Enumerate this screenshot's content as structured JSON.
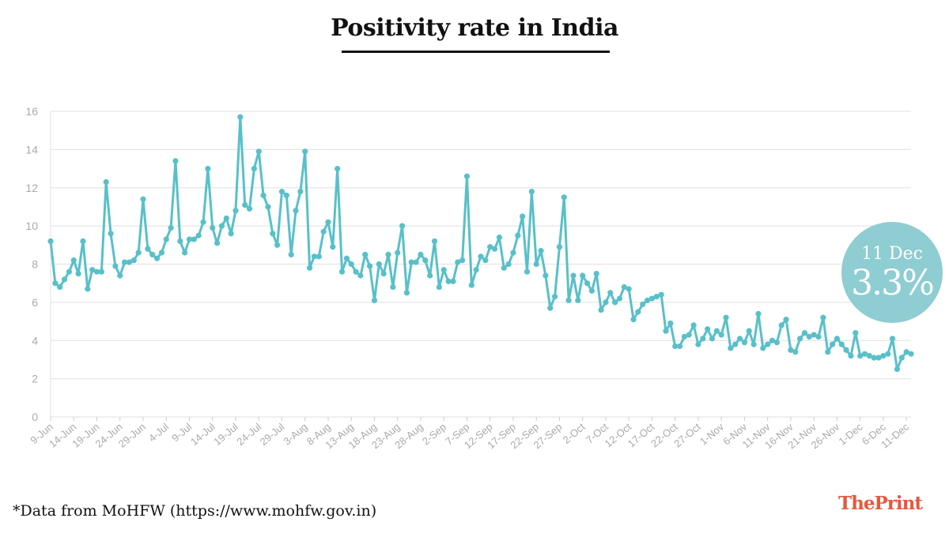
{
  "header": {
    "title": "Positivity rate in India"
  },
  "callout": {
    "date": "11 Dec",
    "value": "3.3%"
  },
  "footer": {
    "source": "*Data from MoHFW (https://www.mohfw.gov.in)",
    "logo": "ThePrint"
  },
  "colors": {
    "line": "#58c0c9",
    "callout": "#8ecdd2",
    "grid": "#e6e6e6",
    "logo": "#e25a3f"
  },
  "chart_data": {
    "type": "line",
    "title": "Positivity rate in India",
    "xlabel": "",
    "ylabel": "",
    "ylim": [
      0,
      16
    ],
    "yticks": [
      0,
      2,
      4,
      6,
      8,
      10,
      12,
      14,
      16
    ],
    "grid": true,
    "start_date": "9-Jun",
    "end_date": "11-Dec",
    "tick_step_days": 5,
    "tick_labels": [
      "9-Jun",
      "14-Jun",
      "19-Jun",
      "24-Jun",
      "29-Jun",
      "4-Jul",
      "9-Jul",
      "14-Jul",
      "19-Jul",
      "24-Jul",
      "29-Jul",
      "3-Aug",
      "8-Aug",
      "13-Aug",
      "18-Aug",
      "23-Aug",
      "28-Aug",
      "2-Sep",
      "7-Sep",
      "12-Sep",
      "17-Sep",
      "22-Sep",
      "27-Sep",
      "2-Oct",
      "7-Oct",
      "12-Oct",
      "17-Oct",
      "22-Oct",
      "27-Oct",
      "1-Nov",
      "6-Nov",
      "11-Nov",
      "16-Nov",
      "21-Nov",
      "26-Nov",
      "1-Dec",
      "6-Dec",
      "11-Dec"
    ],
    "series": [
      {
        "name": "Positivity rate (%)",
        "values": [
          9.2,
          7.0,
          6.8,
          7.2,
          7.6,
          8.2,
          7.5,
          9.2,
          6.7,
          7.7,
          7.6,
          7.6,
          12.3,
          9.6,
          7.9,
          7.4,
          8.1,
          8.1,
          8.2,
          8.6,
          11.4,
          8.8,
          8.5,
          8.3,
          8.6,
          9.3,
          9.9,
          13.4,
          9.2,
          8.6,
          9.3,
          9.3,
          9.5,
          10.2,
          13.0,
          9.9,
          9.1,
          10.0,
          10.4,
          9.6,
          10.8,
          15.7,
          11.1,
          10.9,
          13.0,
          13.9,
          11.6,
          11.0,
          9.6,
          9.0,
          11.8,
          11.6,
          8.5,
          10.8,
          11.8,
          13.9,
          7.8,
          8.4,
          8.4,
          9.7,
          10.2,
          8.9,
          13.0,
          7.6,
          8.3,
          8.0,
          7.6,
          7.4,
          8.5,
          7.9,
          6.1,
          8.0,
          7.5,
          8.5,
          6.8,
          8.6,
          10.0,
          6.5,
          8.1,
          8.1,
          8.5,
          8.2,
          7.4,
          9.2,
          6.8,
          7.7,
          7.1,
          7.1,
          8.1,
          8.2,
          12.6,
          6.9,
          7.7,
          8.4,
          8.2,
          8.9,
          8.8,
          9.4,
          7.8,
          8.0,
          8.6,
          9.5,
          10.5,
          7.6,
          11.8,
          8.0,
          8.7,
          7.4,
          5.7,
          6.3,
          8.9,
          11.5,
          6.1,
          7.4,
          6.1,
          7.4,
          7.0,
          6.6,
          7.5,
          5.6,
          6.0,
          6.5,
          6.0,
          6.2,
          6.8,
          6.7,
          5.1,
          5.5,
          5.9,
          6.1,
          6.2,
          6.3,
          6.4,
          4.5,
          4.9,
          3.7,
          3.7,
          4.2,
          4.3,
          4.8,
          3.8,
          4.1,
          4.6,
          4.1,
          4.5,
          4.3,
          5.2,
          3.6,
          3.8,
          4.1,
          3.9,
          4.5,
          3.8,
          5.4,
          3.6,
          3.8,
          4.0,
          3.9,
          4.8,
          5.1,
          3.5,
          3.4,
          4.1,
          4.4,
          4.2,
          4.3,
          4.2,
          5.2,
          3.4,
          3.8,
          4.1,
          3.8,
          3.5,
          3.2,
          4.4,
          3.2,
          3.3,
          3.2,
          3.1,
          3.1,
          3.2,
          3.3,
          4.1,
          2.5,
          3.1,
          3.4,
          3.3
        ]
      }
    ]
  }
}
